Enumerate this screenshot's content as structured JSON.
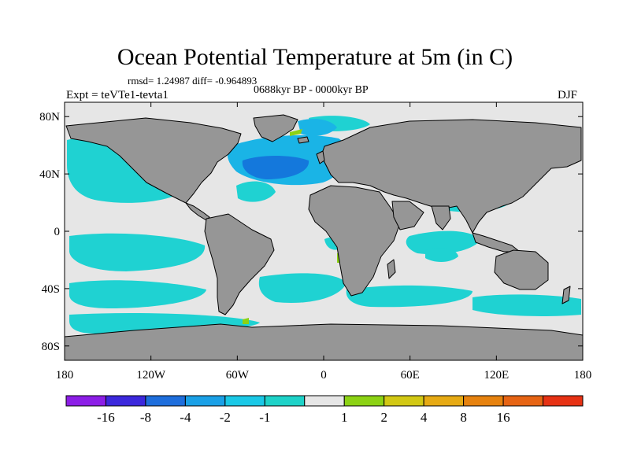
{
  "title": "Ocean Potential Temperature at 5m (in C)",
  "stats": "rmsd= 1.24987 diff= -0.964893",
  "period": "0688kyr BP - 0000kyr BP",
  "experiment": "Expt = teVTe1-tevta1",
  "season": "DJF",
  "colors": {
    "land": "#969696",
    "ocean_near_zero": "#e6e6e6",
    "cyan": "#1fd2d2",
    "light_blue": "#1ab4e6",
    "blue": "#1478dc",
    "warm_green": "#8cd214"
  },
  "map": {
    "lat_ticks": [
      {
        "value": 80,
        "label": "80N"
      },
      {
        "value": 40,
        "label": "40N"
      },
      {
        "value": 0,
        "label": "0"
      },
      {
        "value": -40,
        "label": "40S"
      },
      {
        "value": -80,
        "label": "80S"
      }
    ],
    "lon_ticks": [
      {
        "value": -180,
        "label": "180"
      },
      {
        "value": -120,
        "label": "120W"
      },
      {
        "value": -60,
        "label": "60W"
      },
      {
        "value": 0,
        "label": "0"
      },
      {
        "value": 60,
        "label": "60E"
      },
      {
        "value": 120,
        "label": "120E"
      },
      {
        "value": 180,
        "label": "180"
      }
    ]
  },
  "colorbar": {
    "boxes": [
      "#8c1ee6",
      "#3c28dc",
      "#1e6edc",
      "#1aa0e6",
      "#1ac8e6",
      "#1ed2c8",
      "#e6e6e6",
      "#8cd214",
      "#d2c814",
      "#e6aa14",
      "#e6820f",
      "#e66414",
      "#e63214"
    ],
    "labels": [
      "-16",
      "-8",
      "-4",
      "-2",
      "-1",
      "1",
      "2",
      "4",
      "8",
      "16"
    ]
  }
}
